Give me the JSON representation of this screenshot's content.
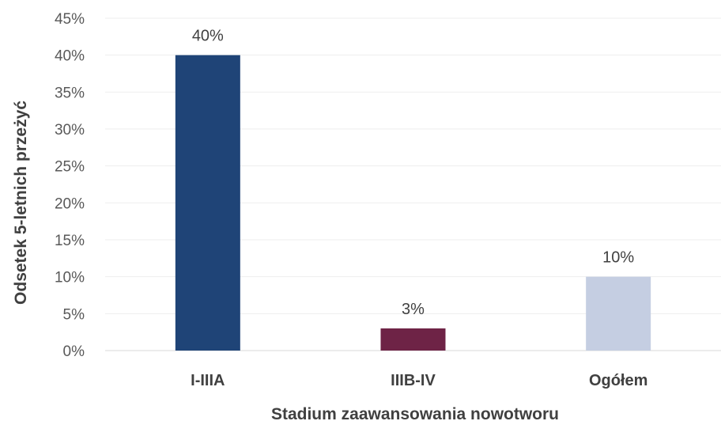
{
  "chart_data": {
    "type": "bar",
    "categories": [
      "I-IIIA",
      "IIIB-IV",
      "Ogółem"
    ],
    "values": [
      40,
      3,
      10
    ],
    "data_labels": [
      "40%",
      "3%",
      "10%"
    ],
    "colors": [
      "#1f4477",
      "#6e2346",
      "#c5cee2"
    ],
    "title": "",
    "xlabel": "Stadium zaawansowania nowotworu",
    "ylabel": "Odsetek 5-letnich przeżyć",
    "ylim": [
      0,
      45
    ],
    "yticks": [
      0,
      5,
      10,
      15,
      20,
      25,
      30,
      35,
      40,
      45
    ],
    "ytick_labels": [
      "0%",
      "5%",
      "10%",
      "15%",
      "20%",
      "25%",
      "30%",
      "35%",
      "40%",
      "45%"
    ],
    "grid": true,
    "legend": "none"
  }
}
